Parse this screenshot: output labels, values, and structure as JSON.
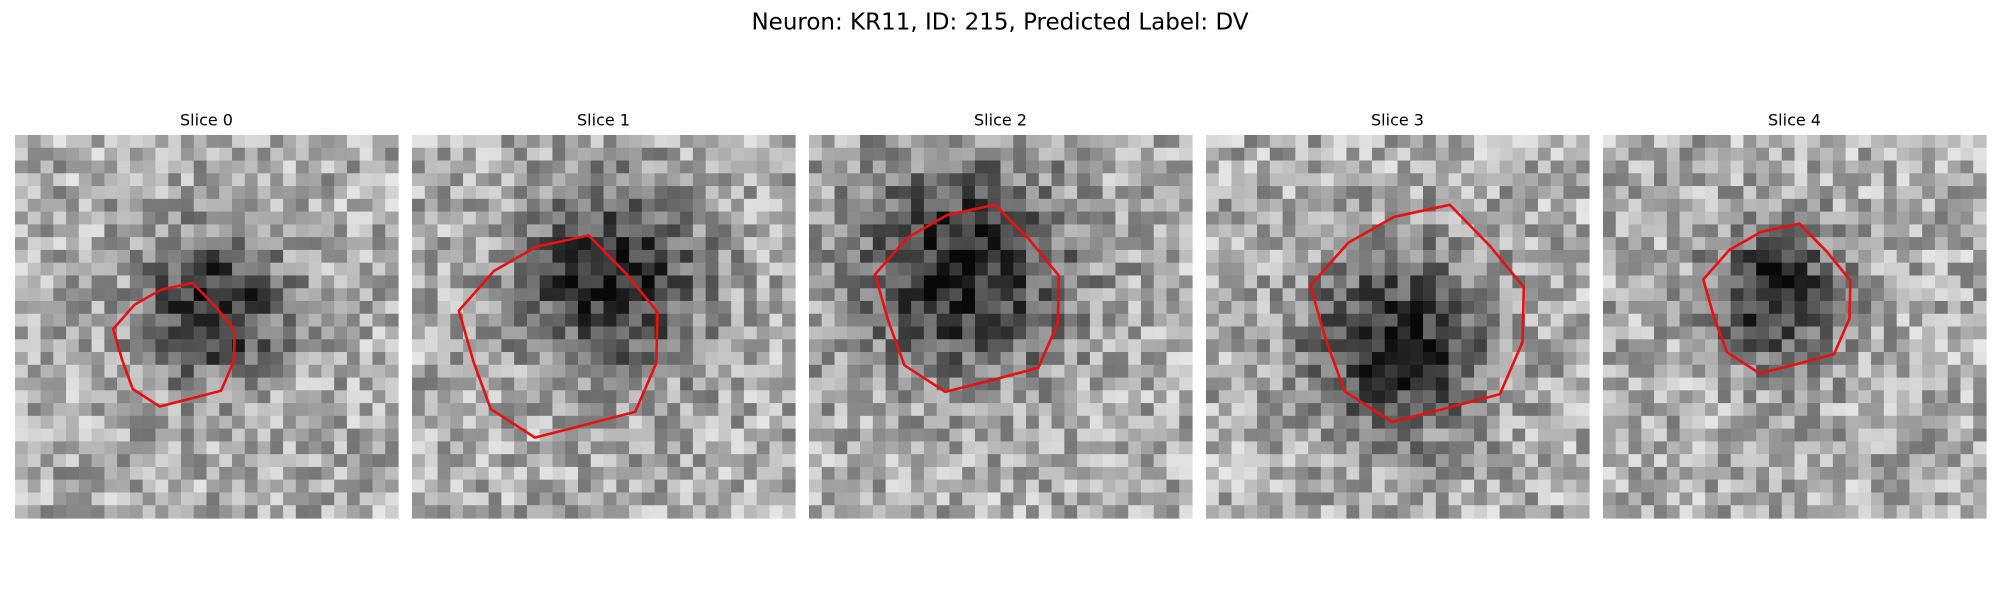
{
  "title": "Neuron: KR11, ID: 215, Predicted Label: DV",
  "panels": [
    {
      "title": "Slice 0"
    },
    {
      "title": "Slice 1"
    },
    {
      "title": "Slice 2"
    },
    {
      "title": "Slice 3"
    },
    {
      "title": "Slice 4"
    }
  ]
}
